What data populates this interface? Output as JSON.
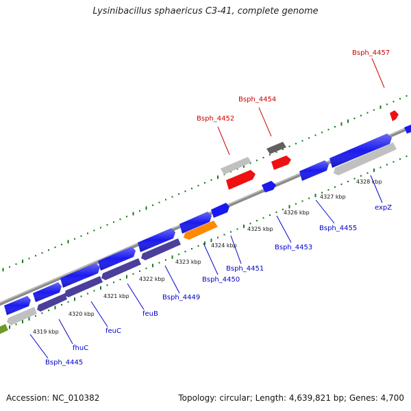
{
  "title": "Lysinibacillus sphaericus C3-41, complete genome",
  "footer": {
    "accession": "Accession: NC_010382",
    "topology": "Topology: circular; Length: 4,639,821 bp; Genes: 4,700"
  },
  "colors": {
    "backbone": "#8a8a8a",
    "forward_gene": "#1a1aee",
    "reverse_gene": "#4a3f9a",
    "pseudo_gene": "#c0c0c0",
    "highlight_gene": "#ff8800",
    "red_gene": "#ee1111",
    "dark_gene": "#606060",
    "olive_gene": "#6f9a2a",
    "gc_ticks": "#1a7a1a",
    "label_blue": "#0000cc",
    "label_red": "#cc0000"
  },
  "ruler": [
    "4319 kbp",
    "4320 kbp",
    "4321 kbp",
    "4322 kbp",
    "4323 kbp",
    "4324 kbp",
    "4325 kbp",
    "4326 kbp",
    "4327 kbp",
    "4328 kbp"
  ],
  "gene_labels": [
    {
      "text": "Bsph_4445",
      "color": "blue"
    },
    {
      "text": "fhuC",
      "color": "blue"
    },
    {
      "text": "feuC",
      "color": "blue"
    },
    {
      "text": "feuB",
      "color": "blue"
    },
    {
      "text": "Bsph_4449",
      "color": "blue"
    },
    {
      "text": "Bsph_4450",
      "color": "blue"
    },
    {
      "text": "Bsph_4451",
      "color": "blue"
    },
    {
      "text": "Bsph_4453",
      "color": "blue"
    },
    {
      "text": "Bsph_4455",
      "color": "blue"
    },
    {
      "text": "expZ",
      "color": "blue"
    },
    {
      "text": "Bsph_4452",
      "color": "red"
    },
    {
      "text": "Bsph_4454",
      "color": "red"
    },
    {
      "text": "Bsph_4457",
      "color": "red"
    }
  ]
}
